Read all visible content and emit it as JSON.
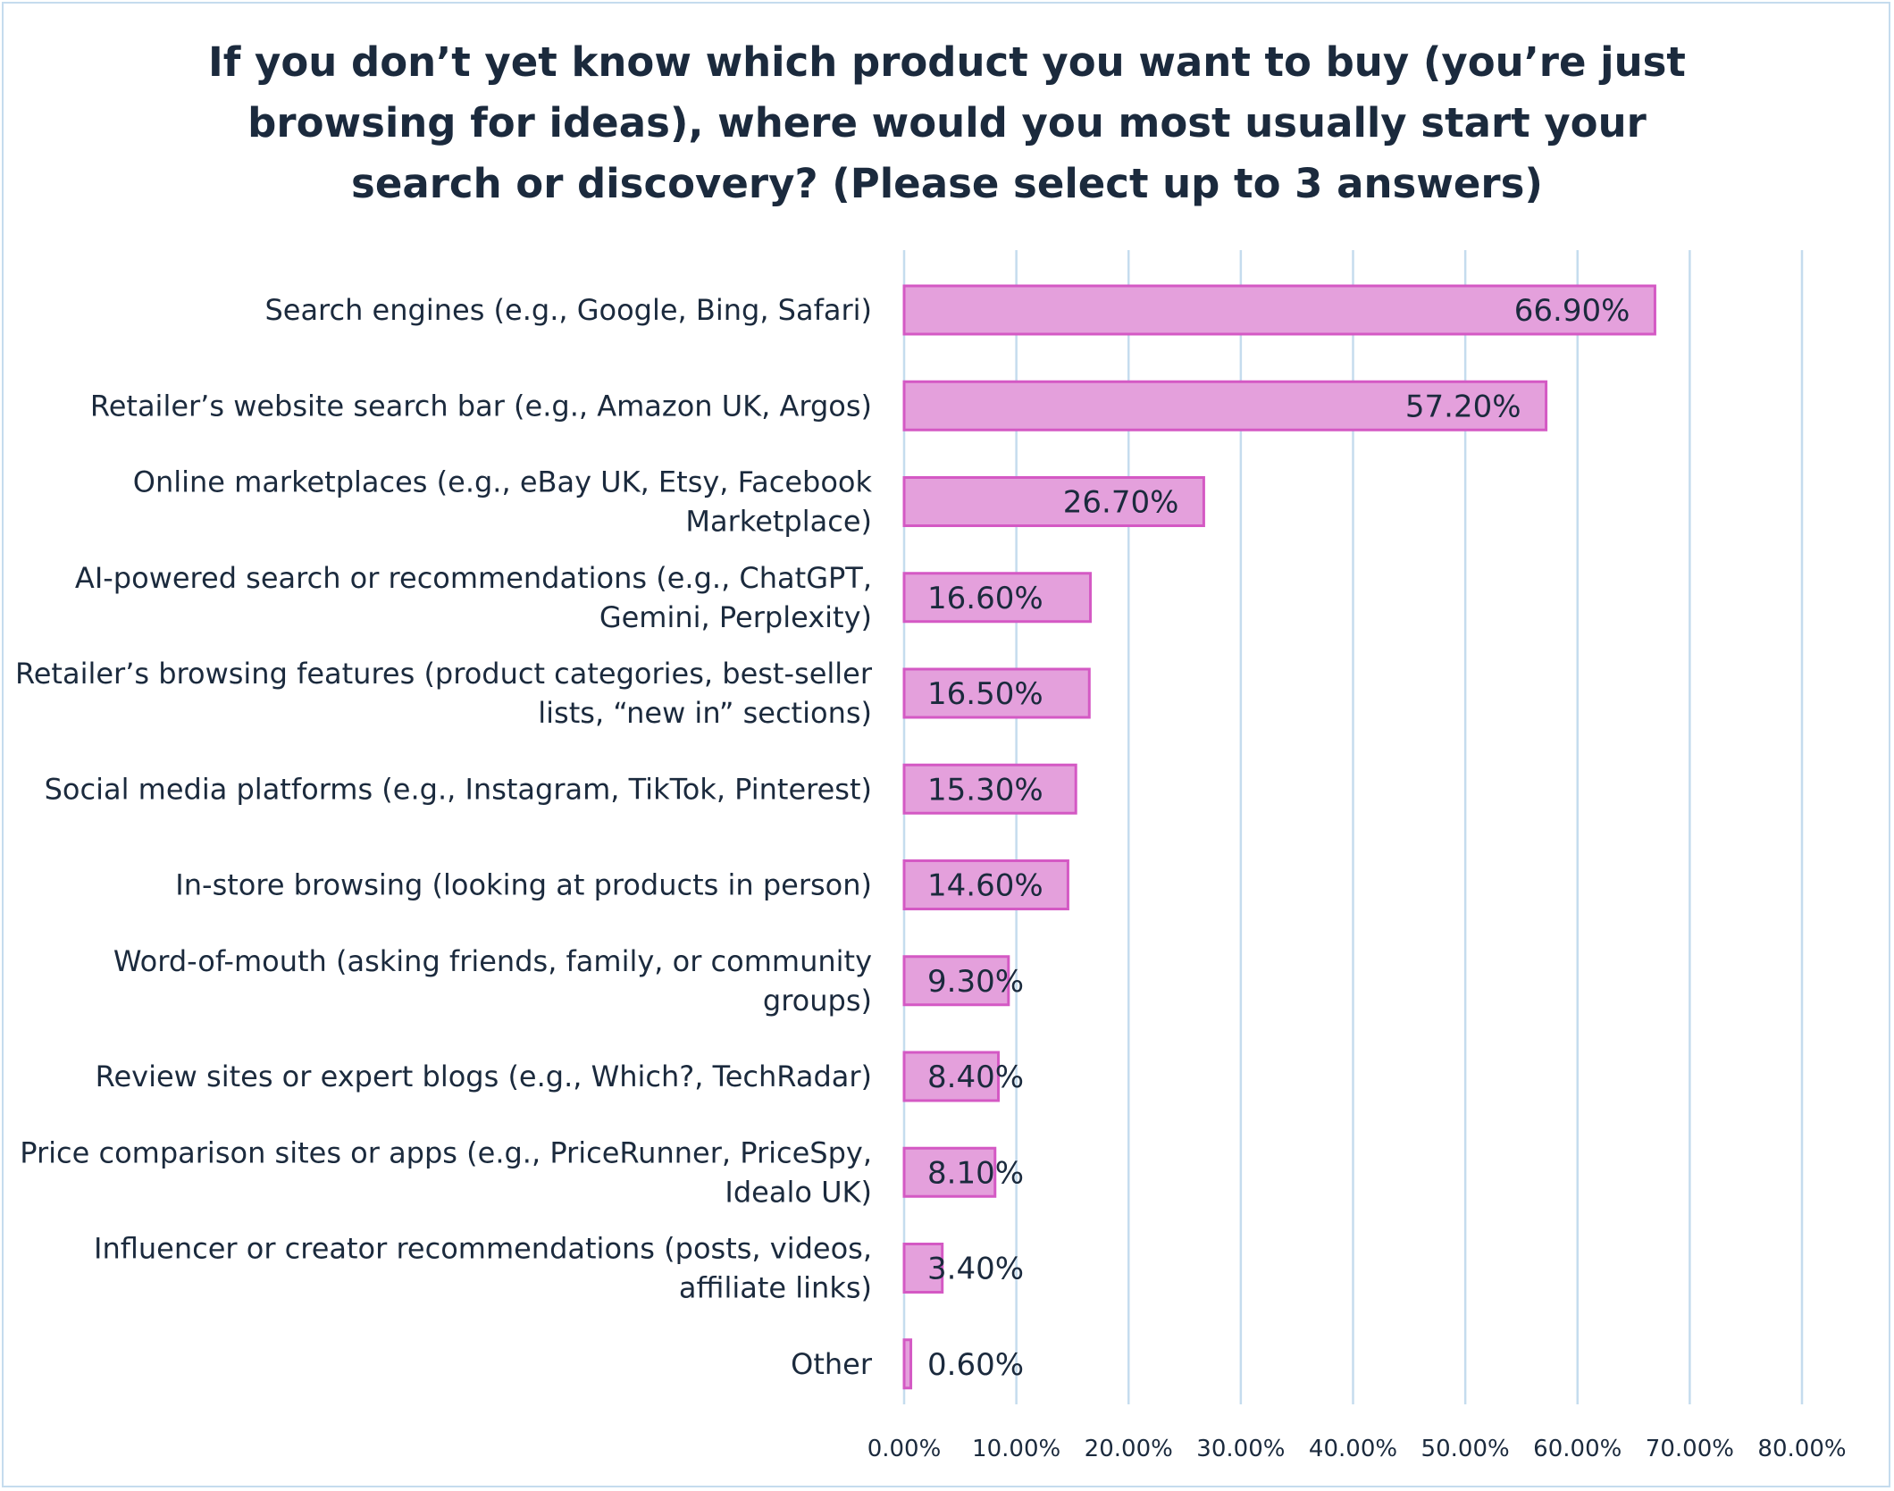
{
  "chart_data": {
    "type": "bar",
    "orientation": "horizontal",
    "title": "If you don’t yet know which product you want to buy (you’re just browsing for ideas), where would you most usually start your search or discovery? (Please select up to 3 answers)",
    "title_lines": [
      "If you don’t yet know which product you want to buy (you’re just",
      "browsing for ideas), where would you most usually start your",
      "search or discovery? (Please select up to 3 answers)"
    ],
    "categories": [
      "Search engines (e.g., Google, Bing, Safari)",
      "Retailer’s website search bar (e.g., Amazon UK, Argos)",
      "Online marketplaces (e.g., eBay UK, Etsy, Facebook Marketplace)",
      "AI-powered search or recommendations (e.g., ChatGPT, Gemini, Perplexity)",
      "Retailer’s browsing features (product categories, best-seller lists, “new in” sections)",
      "Social media platforms (e.g., Instagram, TikTok, Pinterest)",
      "In-store browsing (looking at products in person)",
      "Word-of-mouth (asking friends, family, or community groups)",
      "Review sites or expert blogs (e.g., Which?, TechRadar)",
      "Price comparison sites or apps (e.g., PriceRunner, PriceSpy, Idealo UK)",
      "Influencer or creator recommendations (posts, videos, affiliate links)",
      "Other"
    ],
    "category_lines": [
      [
        "Search engines (e.g., Google, Bing, Safari)"
      ],
      [
        "Retailer’s website search bar (e.g., Amazon UK, Argos)"
      ],
      [
        "Online marketplaces (e.g., eBay UK, Etsy, Facebook",
        "Marketplace)"
      ],
      [
        "AI-powered search or recommendations (e.g., ChatGPT,",
        "Gemini, Perplexity)"
      ],
      [
        "Retailer’s browsing features (product categories, best-seller",
        "lists, “new in” sections)"
      ],
      [
        "Social media platforms (e.g., Instagram, TikTok, Pinterest)"
      ],
      [
        "In-store browsing (looking at products in person)"
      ],
      [
        "Word-of-mouth (asking friends, family, or community",
        "groups)"
      ],
      [
        "Review sites or expert blogs (e.g., Which?, TechRadar)"
      ],
      [
        "Price comparison sites or apps (e.g., PriceRunner, PriceSpy,",
        "Idealo UK)"
      ],
      [
        "Influencer or creator recommendations (posts, videos,",
        "affiliate links)"
      ],
      [
        "Other"
      ]
    ],
    "values": [
      66.9,
      57.2,
      26.7,
      16.6,
      16.5,
      15.3,
      14.6,
      9.3,
      8.4,
      8.1,
      3.4,
      0.6
    ],
    "value_labels": [
      "66.90%",
      "57.20%",
      "26.70%",
      "16.60%",
      "16.50%",
      "15.30%",
      "14.60%",
      "9.30%",
      "8.40%",
      "8.10%",
      "3.40%",
      "0.60%"
    ],
    "xlim": [
      0,
      80
    ],
    "x_ticks": [
      0,
      10,
      20,
      30,
      40,
      50,
      60,
      70,
      80
    ],
    "x_tick_labels": [
      "0.00%",
      "10.00%",
      "20.00%",
      "30.00%",
      "40.00%",
      "50.00%",
      "60.00%",
      "70.00%",
      "80.00%"
    ],
    "xlabel": "",
    "ylabel": "",
    "grid": "vertical",
    "legend": "none"
  },
  "colors": {
    "bar_fill": "#e4a0dc",
    "bar_stroke": "#d459c4",
    "grid": "#c5dcee",
    "text": "#1b2a3d"
  }
}
